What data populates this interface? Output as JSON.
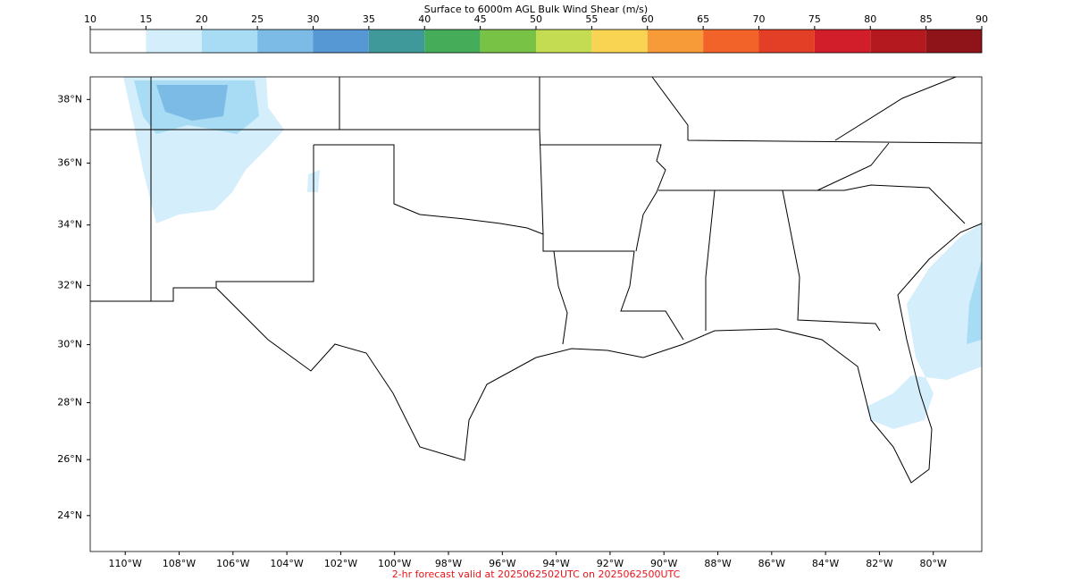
{
  "colorbar": {
    "title": "Surface to 6000m AGL Bulk Wind Shear (m/s)",
    "ticks": [
      10,
      15,
      20,
      25,
      30,
      35,
      40,
      45,
      50,
      55,
      60,
      65,
      70,
      75,
      80,
      85,
      90
    ],
    "colors": [
      "#ffffff",
      "#d4eefb",
      "#a8dcf5",
      "#7bbbe6",
      "#5598d4",
      "#3f999a",
      "#45ac5a",
      "#78c345",
      "#c3dc52",
      "#f9d452",
      "#f79a38",
      "#f2632a",
      "#e33e26",
      "#d11e2a",
      "#b4191f",
      "#8f141a"
    ]
  },
  "map": {
    "lon_range": [
      -111.3,
      -78.2
    ],
    "lat_range": [
      22.7,
      38.7
    ],
    "lon_ticks": [
      {
        "value": -110,
        "label": "110°W"
      },
      {
        "value": -108,
        "label": "108°W"
      },
      {
        "value": -106,
        "label": "106°W"
      },
      {
        "value": -104,
        "label": "104°W"
      },
      {
        "value": -102,
        "label": "102°W"
      },
      {
        "value": -100,
        "label": "100°W"
      },
      {
        "value": -98,
        "label": "98°W"
      },
      {
        "value": -96,
        "label": "96°W"
      },
      {
        "value": -94,
        "label": "94°W"
      },
      {
        "value": -92,
        "label": "92°W"
      },
      {
        "value": -90,
        "label": "90°W"
      },
      {
        "value": -88,
        "label": "88°W"
      },
      {
        "value": -86,
        "label": "86°W"
      },
      {
        "value": -84,
        "label": "84°W"
      },
      {
        "value": -82,
        "label": "82°W"
      },
      {
        "value": -80,
        "label": "80°W"
      }
    ],
    "lat_ticks": [
      {
        "value": 38,
        "label": "38°N"
      },
      {
        "value": 36,
        "label": "36°N"
      },
      {
        "value": 34,
        "label": "34°N"
      },
      {
        "value": 32,
        "label": "32°N"
      },
      {
        "value": 30,
        "label": "30°N"
      },
      {
        "value": 28,
        "label": "28°N"
      },
      {
        "value": 26,
        "label": "26°N"
      },
      {
        "value": 24,
        "label": "24°N"
      }
    ]
  },
  "footer": "2-hr forecast valid at 2025062502UTC on 2025062500UTC"
}
